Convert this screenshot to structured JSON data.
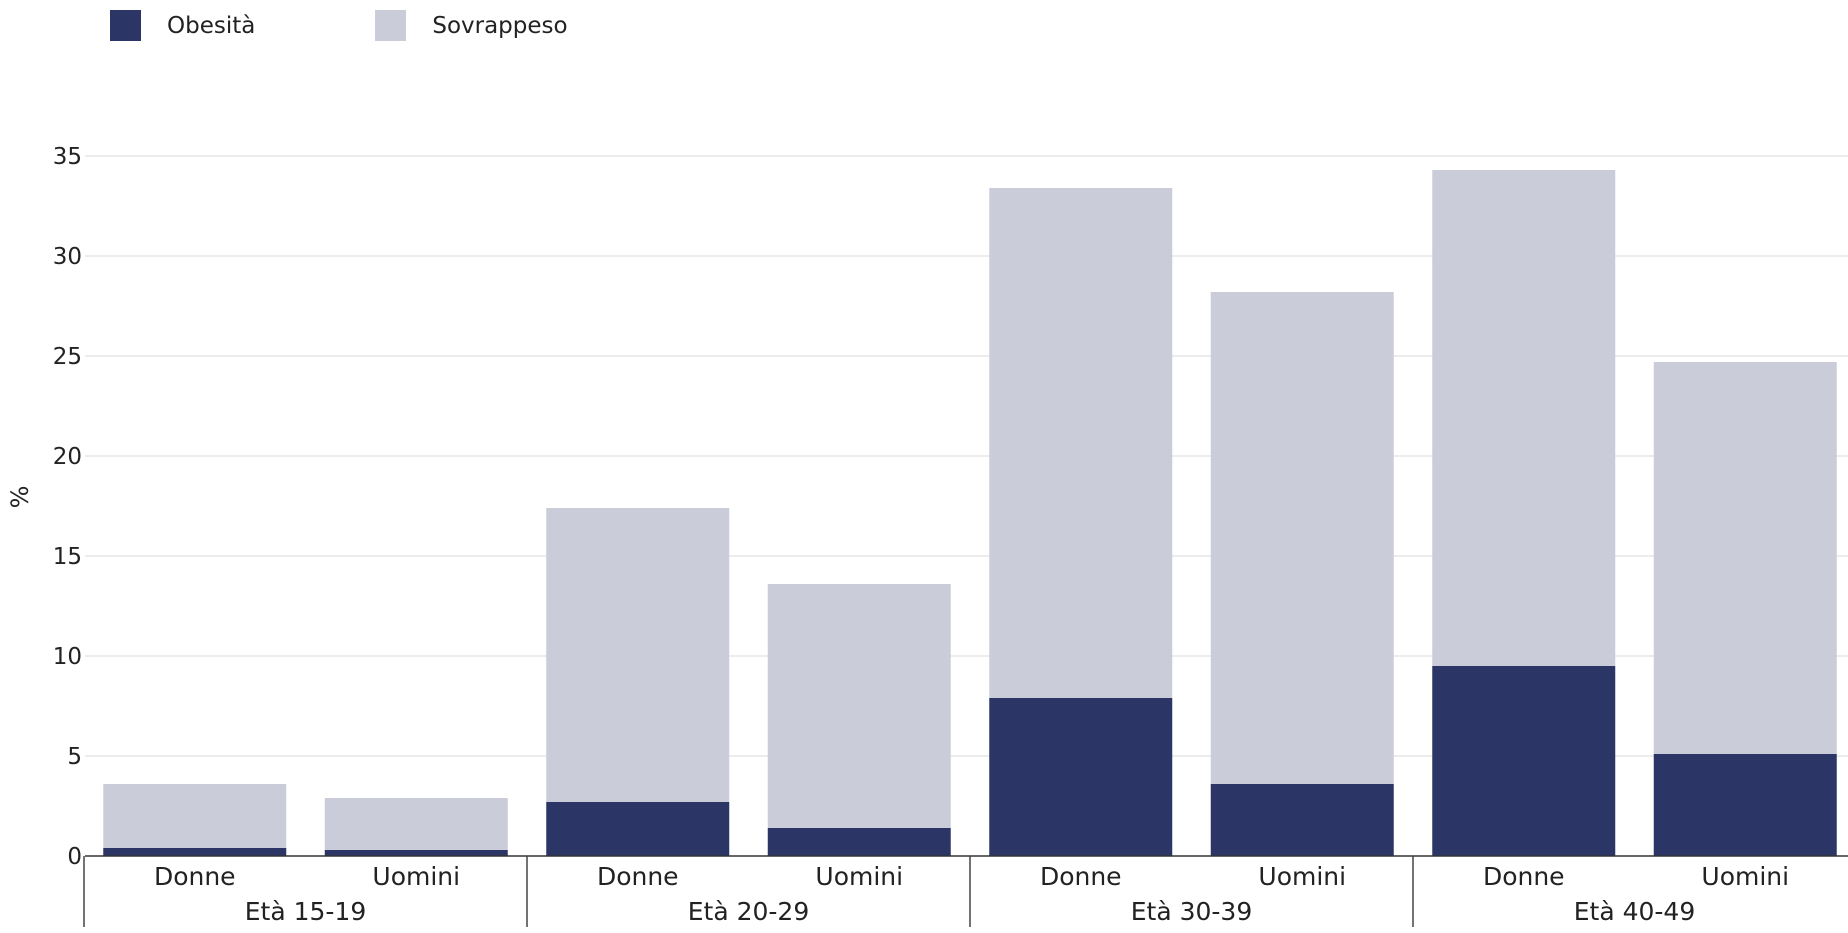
{
  "chart_data": {
    "type": "bar",
    "stacked": true,
    "title": "",
    "xlabel": "",
    "ylabel": "%",
    "ylim": [
      0,
      35
    ],
    "yticks": [
      0,
      5,
      10,
      15,
      20,
      25,
      30,
      35
    ],
    "grid": true,
    "legend_position": "top-left",
    "groups": [
      "Età 15-19",
      "Età 20-29",
      "Età 30-39",
      "Età 40-49"
    ],
    "categories": [
      "Donne",
      "Uomini",
      "Donne",
      "Uomini",
      "Donne",
      "Uomini",
      "Donne",
      "Uomini"
    ],
    "series": [
      {
        "name": "Obesità",
        "color": "#2b3666",
        "values": [
          0.4,
          0.3,
          2.7,
          1.4,
          7.9,
          3.6,
          9.5,
          5.1
        ]
      },
      {
        "name": "Sovrappeso",
        "color": "#cacdd9",
        "values": [
          3.2,
          2.6,
          14.7,
          12.2,
          25.5,
          24.6,
          24.8,
          19.6
        ]
      }
    ]
  }
}
